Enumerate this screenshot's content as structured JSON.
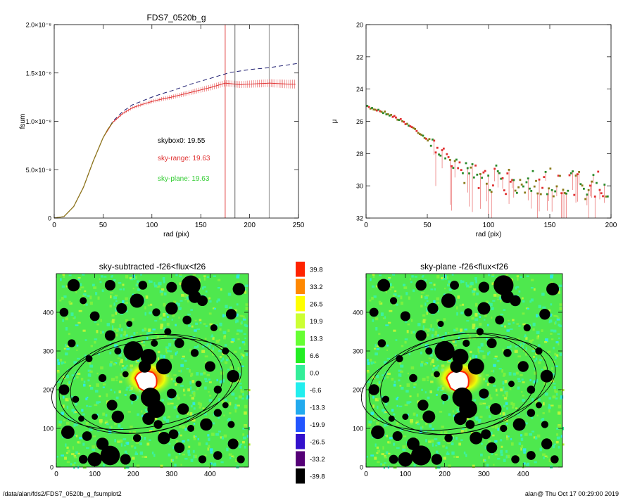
{
  "page": {
    "footer_left": "/data/alan/fds2/FDS7_0520b_g_fsumplot2",
    "footer_right": "alan@  Thu Oct 17 00:29:00 2019"
  },
  "chart_data": [
    {
      "id": "fsum",
      "type": "line",
      "title": "FDS7_0520b_g",
      "xlabel": "rad (pix)",
      "ylabel": "fsum",
      "xlim": [
        0,
        250
      ],
      "ylim": [
        0,
        2e-08
      ],
      "xticks": [
        0,
        50,
        100,
        150,
        200,
        250
      ],
      "yticks": [
        {
          "value": 0,
          "label": "0"
        },
        {
          "value": 5e-09,
          "label": "5.0×10⁻⁹"
        },
        {
          "value": 1e-08,
          "label": "1.0×10⁻⁸"
        },
        {
          "value": 1.5e-08,
          "label": "1.5×10⁻⁸"
        },
        {
          "value": 2e-08,
          "label": "2.0×10⁻⁸"
        }
      ],
      "vlines": [
        {
          "x": 175,
          "color": "#e03030"
        },
        {
          "x": 185,
          "color": "#555555"
        },
        {
          "x": 220,
          "color": "#888888"
        }
      ],
      "series": [
        {
          "style": "dashed",
          "color": "#1a1a6e",
          "x": [
            0,
            10,
            20,
            30,
            40,
            50,
            60,
            70,
            80,
            90,
            100,
            110,
            120,
            130,
            140,
            150,
            160,
            170,
            180,
            190,
            200,
            210,
            220,
            230,
            240,
            250
          ],
          "y": [
            0,
            1.5e-10,
            1.2e-09,
            3.2e-09,
            5.9e-09,
            8.3e-09,
            1e-08,
            1.1e-08,
            1.17e-08,
            1.21e-08,
            1.25e-08,
            1.285e-08,
            1.315e-08,
            1.35e-08,
            1.385e-08,
            1.415e-08,
            1.445e-08,
            1.475e-08,
            1.505e-08,
            1.52e-08,
            1.535e-08,
            1.545e-08,
            1.555e-08,
            1.57e-08,
            1.585e-08,
            1.6e-08
          ]
        },
        {
          "style": "errorbar",
          "color": "#e03030",
          "x": [
            0,
            10,
            20,
            30,
            40,
            50,
            60,
            70,
            80,
            90,
            100,
            110,
            120,
            130,
            140,
            150,
            160,
            170,
            175,
            180,
            190,
            200,
            210,
            220,
            230,
            240,
            247
          ],
          "y": [
            0,
            1.5e-10,
            1.2e-09,
            3.2e-09,
            5.9e-09,
            8.3e-09,
            9.9e-09,
            1.08e-08,
            1.14e-08,
            1.175e-08,
            1.205e-08,
            1.23e-08,
            1.25e-08,
            1.275e-08,
            1.3e-08,
            1.325e-08,
            1.35e-08,
            1.38e-08,
            1.395e-08,
            1.39e-08,
            1.38e-08,
            1.385e-08,
            1.39e-08,
            1.395e-08,
            1.39e-08,
            1.385e-08,
            1.385e-08
          ]
        },
        {
          "style": "solid",
          "color": "#8a7a1a",
          "x": [
            0,
            10,
            20,
            30,
            40,
            50,
            55,
            60
          ],
          "y": [
            0,
            1.5e-10,
            1.2e-09,
            3.2e-09,
            5.9e-09,
            8.3e-09,
            9.2e-09,
            9.9e-09
          ]
        }
      ],
      "annotations": [
        {
          "text": "skybox0: 19.55",
          "color": "#000000"
        },
        {
          "text": "sky-range: 19.63",
          "color": "#e03030"
        },
        {
          "text": "sky-plane: 19.63",
          "color": "#33cc33"
        }
      ]
    },
    {
      "id": "mu",
      "type": "scatter",
      "title": "",
      "xlabel": "rad (pix)",
      "ylabel": "μ",
      "xlim": [
        0,
        200
      ],
      "ylim": [
        32,
        20
      ],
      "xticks": [
        0,
        50,
        100,
        150,
        200
      ],
      "yticks": [
        20,
        22,
        24,
        26,
        28,
        30,
        32
      ],
      "profile": [
        [
          0,
          25.1
        ],
        [
          10,
          25.3
        ],
        [
          20,
          25.6
        ],
        [
          30,
          26.0
        ],
        [
          40,
          26.5
        ],
        [
          50,
          27.1
        ],
        [
          60,
          27.8
        ],
        [
          70,
          28.5
        ],
        [
          80,
          29.0
        ],
        [
          90,
          29.3
        ],
        [
          100,
          29.5
        ],
        [
          110,
          29.7
        ],
        [
          120,
          29.8
        ],
        [
          130,
          29.8
        ],
        [
          140,
          29.8
        ],
        [
          150,
          29.8
        ],
        [
          160,
          29.9
        ],
        [
          170,
          29.9
        ],
        [
          180,
          30.0
        ],
        [
          190,
          30.0
        ],
        [
          200,
          30.0
        ]
      ],
      "colors": [
        "#e03030",
        "#8a7a1a",
        "#2a8a2a"
      ]
    },
    {
      "id": "img1",
      "type": "heatmap",
      "title": "sky-subtracted -f26<flux<f26",
      "xlim": [
        0,
        500
      ],
      "ylim": [
        0,
        500
      ],
      "xticks": [
        0,
        100,
        200,
        300,
        400
      ],
      "yticks": [
        0,
        100,
        200,
        300,
        400
      ]
    },
    {
      "id": "img2",
      "type": "heatmap",
      "title": "sky-plane -f26<flux<f26",
      "xlim": [
        0,
        500
      ],
      "ylim": [
        0,
        500
      ],
      "xticks": [
        0,
        100,
        200,
        300,
        400
      ],
      "yticks": [
        0,
        100,
        200,
        300,
        400
      ]
    },
    {
      "id": "colorbar",
      "type": "table",
      "levels": [
        {
          "label": "39.8",
          "color": "#ff2200"
        },
        {
          "label": "33.2",
          "color": "#ff8800"
        },
        {
          "label": "26.5",
          "color": "#ffff00"
        },
        {
          "label": "19.9",
          "color": "#ccff33"
        },
        {
          "label": "13.3",
          "color": "#66ff33"
        },
        {
          "label": "6.6",
          "color": "#22ee22"
        },
        {
          "label": "0.0",
          "color": "#33ee99"
        },
        {
          "label": "-6.6",
          "color": "#22eeee"
        },
        {
          "label": "-13.3",
          "color": "#22aaee"
        },
        {
          "label": "-19.9",
          "color": "#2255ff"
        },
        {
          "label": "-26.5",
          "color": "#3311cc"
        },
        {
          "label": "-33.2",
          "color": "#550077"
        },
        {
          "label": "-39.8",
          "color": "#000000"
        }
      ]
    }
  ]
}
